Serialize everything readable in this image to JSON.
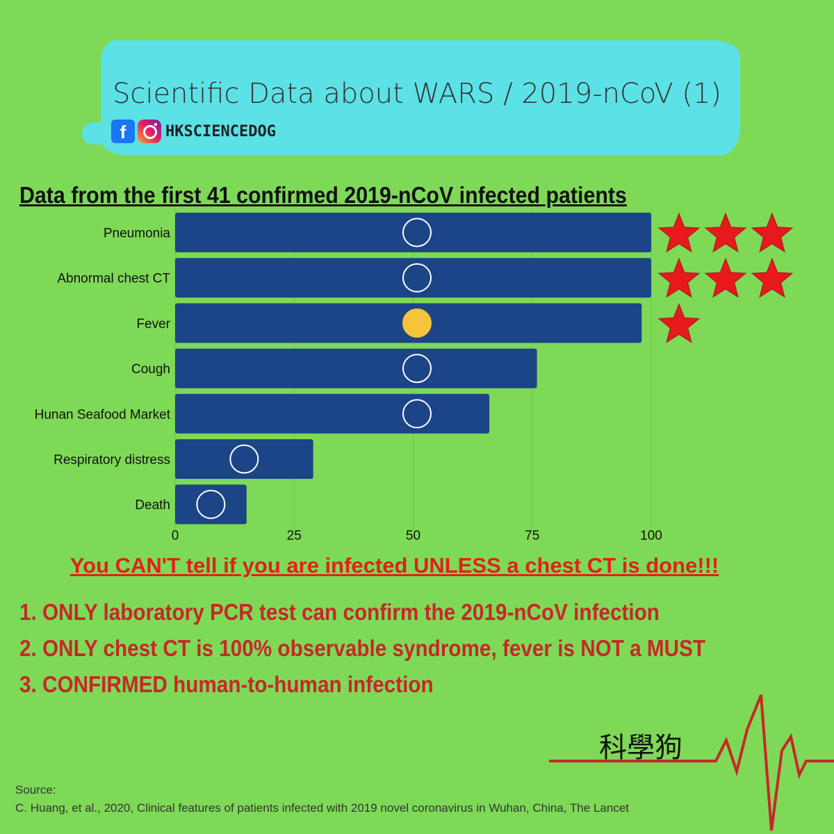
{
  "header": {
    "title": "Scientific Data about WARS / 2019-nCoV (1)",
    "handle": "HKSCIENCEDOG",
    "facebook_icon": "facebook-icon",
    "instagram_icon": "instagram-icon"
  },
  "chart_data": {
    "type": "bar",
    "orientation": "horizontal",
    "title": "Data from the first 41 confirmed 2019-nCoV infected patients",
    "categories": [
      "Pneumonia",
      "Abnormal chest CT",
      "Fever",
      "Cough",
      "Hunan Seafood Market",
      "Respiratory distress",
      "Death"
    ],
    "values": [
      100,
      100,
      98,
      76,
      66,
      29,
      15
    ],
    "icons": [
      "lungs-icon",
      "stethoscope-icon",
      "masked-face-icon",
      "coughing-head-icon",
      "people-group-icon",
      "inhaler-icon",
      "grave-icon"
    ],
    "stars": [
      3,
      3,
      1,
      0,
      0,
      0,
      0
    ],
    "xticks": [
      0,
      25,
      50,
      75,
      100
    ],
    "xlim": [
      0,
      100
    ],
    "grid": true,
    "bar_color": "#1c4587",
    "star_color": "#e8191c"
  },
  "warning": "You CAN'T tell if you are infected UNLESS a chest CT is done!!!",
  "points": [
    "1. ONLY laboratory PCR test can confirm the 2019-nCoV infection",
    "2. ONLY chest CT is 100% observable syndrome, fever is NOT a MUST",
    "3. CONFIRMED human-to-human infection"
  ],
  "brand": "科學狗",
  "source": {
    "label": "Source:",
    "citation": "C. Huang, et al., 2020, Clinical features of patients infected with 2019 novel coronavirus in Wuhan, China, The Lancet"
  }
}
